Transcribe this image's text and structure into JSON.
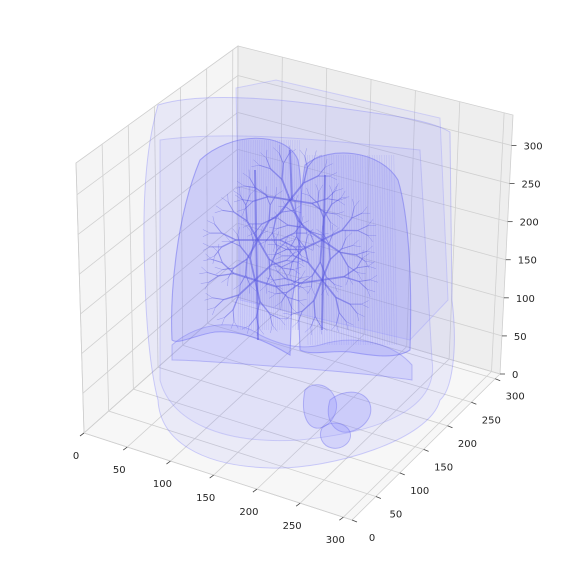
{
  "chart_data": {
    "type": "3d-volume",
    "title": "",
    "xlabel": "",
    "ylabel": "",
    "zlabel": "",
    "x_ticks": [
      0,
      50,
      100,
      150,
      200,
      250,
      300
    ],
    "y_ticks": [
      0,
      50,
      100,
      150,
      200,
      250,
      300
    ],
    "z_ticks": [
      0,
      50,
      100,
      150,
      200,
      250,
      300
    ],
    "xlim": [
      0,
      310
    ],
    "ylim": [
      0,
      310
    ],
    "zlim": [
      0,
      340
    ],
    "grid": true,
    "legend": "none",
    "series": [
      {
        "color": "#6f6ff5",
        "alpha": 0.15
      }
    ]
  },
  "colors": {
    "volume_fill": "#8080ff",
    "volume_stroke": "#5555ee",
    "pane_back": "#f2f2f2",
    "pane_side": "#f5f5f5",
    "pane_floor": "#f7f7f7",
    "grid": "#d0d0d0"
  }
}
